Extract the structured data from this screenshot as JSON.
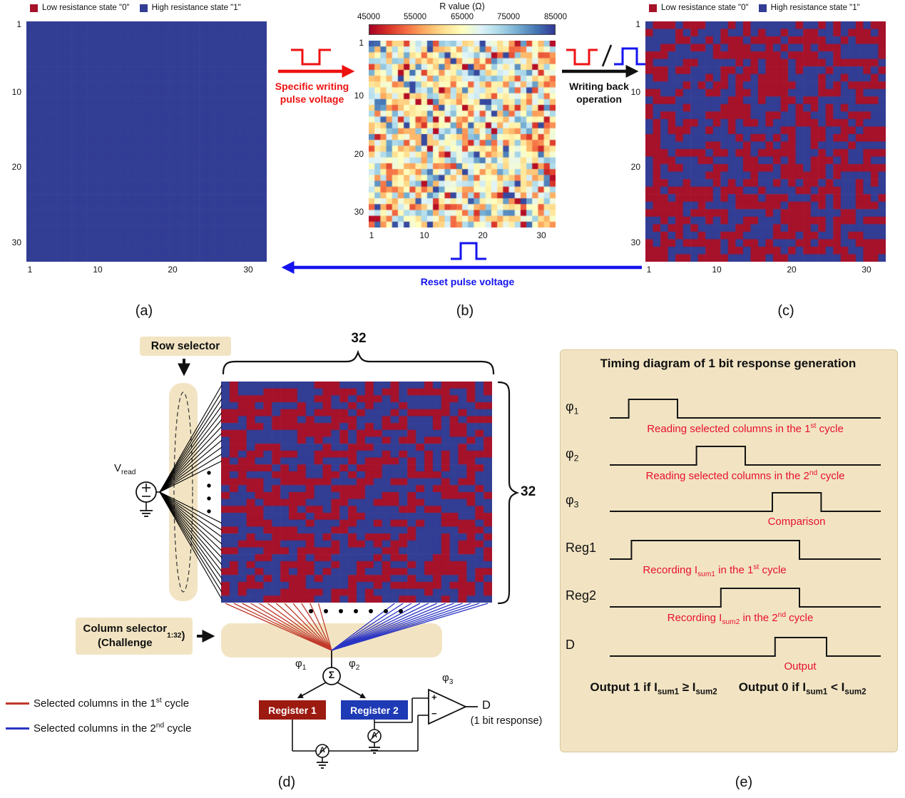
{
  "colors": {
    "matrix_red": "#a5122a",
    "matrix_blue": "#323d94",
    "accent_red": "#ee1111",
    "accent_blue": "#1414f0",
    "beige": "#f2e4c3",
    "reg1_bg": "#9c1a10",
    "reg2_bg": "#1e3ab4",
    "anno_red": "#e8112d",
    "line_red": "#c0392b",
    "line_blue": "#2b35c4",
    "wire_black": "#111111"
  },
  "legend": {
    "low": "Low resistance state \"0\"",
    "high": "High resistance state \"1\""
  },
  "panels": {
    "a": {
      "label": "(a)",
      "yticks": [
        "1",
        "10",
        "20",
        "30"
      ],
      "xticks": [
        "1",
        "10",
        "20",
        "30"
      ]
    },
    "b": {
      "label": "(b)",
      "colorbar_title": "R value (Ω)",
      "colorbar_ticks": [
        "45000",
        "55000",
        "65000",
        "75000",
        "85000"
      ],
      "yticks": [
        "1",
        "10",
        "20",
        "30"
      ],
      "xticks": [
        "1",
        "10",
        "20",
        "30"
      ]
    },
    "c": {
      "label": "(c)",
      "yticks": [
        "1",
        "10",
        "20",
        "30"
      ],
      "xticks": [
        "1",
        "10",
        "20",
        "30"
      ]
    },
    "d": {
      "label": "(d)"
    },
    "e": {
      "label": "(e)"
    }
  },
  "arrows": {
    "ab": {
      "caption_line1": "Specific writing",
      "caption_line2": "pulse voltage"
    },
    "bc": {
      "caption_line1": "Writing back",
      "caption_line2": "operation"
    },
    "ca": {
      "caption": "Reset pulse voltage"
    }
  },
  "circuit": {
    "row_selector": "Row selector",
    "col_count_top": "32",
    "row_count_right": "32",
    "v_read_html": "V<sub>read</sub>",
    "column_selector_html": "Column selector<br>(Challenge<sub>1:32</sub>)",
    "phi1_html": "φ<sub>1</sub>",
    "phi2_html": "φ<sub>2</sub>",
    "phi3_html": "φ<sub>3</sub>",
    "sigma": "Σ",
    "register1": "Register 1",
    "register2": "Register 2",
    "d_out": "D",
    "d_out_sub": "(1 bit response)",
    "ammeter": "A",
    "plus": "+",
    "minus": "−",
    "legend1_html": "Selected columns in the 1<sup>st</sup> cycle",
    "legend2_html": "Selected columns in the 2<sup>nd</sup> cycle"
  },
  "timing": {
    "title": "Timing diagram of 1 bit response generation",
    "signals": [
      {
        "label_html": "φ<sub>1</sub>",
        "pulse": [
          0.07,
          0.25
        ],
        "annotation_html": "Reading selected columns in the 1<sup>st</sup> cycle"
      },
      {
        "label_html": "φ<sub>2</sub>",
        "pulse": [
          0.32,
          0.5
        ],
        "annotation_html": "Reading selected columns in the 2<sup>nd</sup> cycle"
      },
      {
        "label_html": "φ<sub>3</sub>",
        "pulse": [
          0.6,
          0.78
        ],
        "annotation_html": "Comparison"
      },
      {
        "label_html": "Reg1",
        "pulse": [
          0.08,
          0.7
        ],
        "annotation_html": "Recording I<sub>sum1</sub> in the 1<sup>st</sup> cycle"
      },
      {
        "label_html": "Reg2",
        "pulse": [
          0.41,
          0.7
        ],
        "annotation_html": "Recording I<sub>sum2</sub> in the 2<sup>nd</sup> cycle"
      },
      {
        "label_html": "D",
        "pulse": [
          0.61,
          0.8
        ],
        "annotation_html": "Output"
      }
    ],
    "condition1_html": "Output 1 if I<sub>sum1</sub> ≥ I<sub>sum2</sub>",
    "condition2_html": "Output 0 if I<sub>sum1</sub> &lt; I<sub>sum2</sub>"
  },
  "chart_data": [
    {
      "id": "a",
      "type": "heatmap",
      "subtype": "binary_state_map",
      "rows": 32,
      "cols": 32,
      "fill": "all_high",
      "p_high": 1.0,
      "seed": 1,
      "x_ticks": [
        1,
        10,
        20,
        30
      ],
      "y_ticks": [
        1,
        10,
        20,
        30
      ],
      "state_colors": {
        "low_0": "#a5122a",
        "high_1": "#323d94"
      },
      "description": "Initial array: every cell in high resistance state 1 (solid blue)"
    },
    {
      "id": "b",
      "type": "heatmap",
      "subtype": "analog_resistance_map",
      "rows": 32,
      "cols": 32,
      "seed": 909,
      "value_range": [
        45000,
        85000
      ],
      "extreme_fraction": 0.05,
      "colorbar_title": "R value (Ω)",
      "colorbar_ticks": [
        45000,
        55000,
        65000,
        75000,
        85000
      ],
      "x_ticks": [
        1,
        10,
        20,
        30
      ],
      "y_ticks": [
        1,
        10,
        20,
        30
      ],
      "colormap_stops": [
        "#a50026",
        "#d73027",
        "#f46d43",
        "#fdae61",
        "#fee090",
        "#ffffbf",
        "#e0f3f8",
        "#abd9e9",
        "#74add1",
        "#4575b4",
        "#313695"
      ],
      "description": "Random analog resistance values (45–85 kΩ) after specific writing pulse"
    },
    {
      "id": "c",
      "type": "heatmap",
      "subtype": "binary_state_map",
      "rows": 32,
      "cols": 32,
      "seed": 101,
      "p_high": 0.48,
      "x_ticks": [
        1,
        10,
        20,
        30
      ],
      "y_ticks": [
        1,
        10,
        20,
        30
      ],
      "state_colors": {
        "low_0": "#a5122a",
        "high_1": "#323d94"
      },
      "description": "Random binary pattern after writing back operation"
    },
    {
      "id": "d",
      "type": "heatmap",
      "subtype": "binary_state_map",
      "rows": 32,
      "cols": 32,
      "seed": 202,
      "p_high": 0.53,
      "state_colors": {
        "low_0": "#a5122a",
        "high_1": "#323d94"
      },
      "description": "PUF crossbar array state used in readout circuit"
    }
  ]
}
